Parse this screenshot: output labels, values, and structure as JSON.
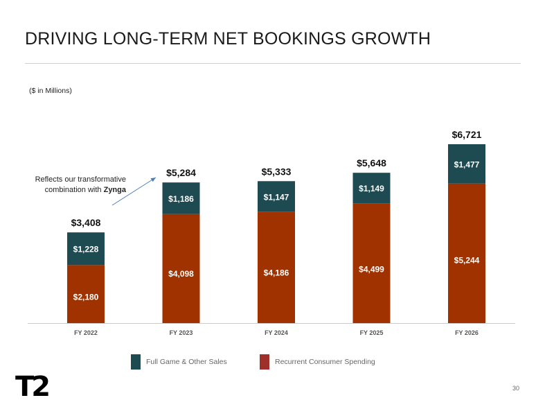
{
  "title": "DRIVING LONG-TERM NET BOOKINGS GROWTH",
  "units_note": "($ in Millions)",
  "annotation": {
    "prefix": "Reflects our transformative combination with ",
    "emphasis": "Zynga"
  },
  "page_number": "30",
  "logo_text": "T2",
  "legend": [
    {
      "label": "Full Game & Other Sales",
      "color": "#1e4a52"
    },
    {
      "label": "Recurrent Consumer Spending",
      "color": "#9e2f2a"
    }
  ],
  "chart_data": {
    "type": "bar",
    "stacked": true,
    "categories": [
      "FY 2022",
      "FY 2023",
      "FY 2024",
      "FY 2025",
      "FY 2026"
    ],
    "series": [
      {
        "name": "Recurrent Consumer Spending",
        "color": "#a03200",
        "values": [
          2180,
          4098,
          4186,
          4499,
          5244
        ],
        "labels": [
          "$2,180",
          "$4,098",
          "$4,186",
          "$4,499",
          "$5,244"
        ]
      },
      {
        "name": "Full Game & Other Sales",
        "color": "#1e4a52",
        "values": [
          1228,
          1186,
          1147,
          1149,
          1477
        ],
        "labels": [
          "$1,228",
          "$1,186",
          "$1,147",
          "$1,149",
          "$1,477"
        ]
      }
    ],
    "totals": [
      3408,
      5284,
      5333,
      5648,
      6721
    ],
    "total_labels": [
      "$3,408",
      "$5,284",
      "$5,333",
      "$5,648",
      "$6,721"
    ],
    "ylim": [
      0,
      6721
    ],
    "xlabel": "",
    "ylabel": "",
    "grid": false,
    "legend_position": "bottom"
  }
}
